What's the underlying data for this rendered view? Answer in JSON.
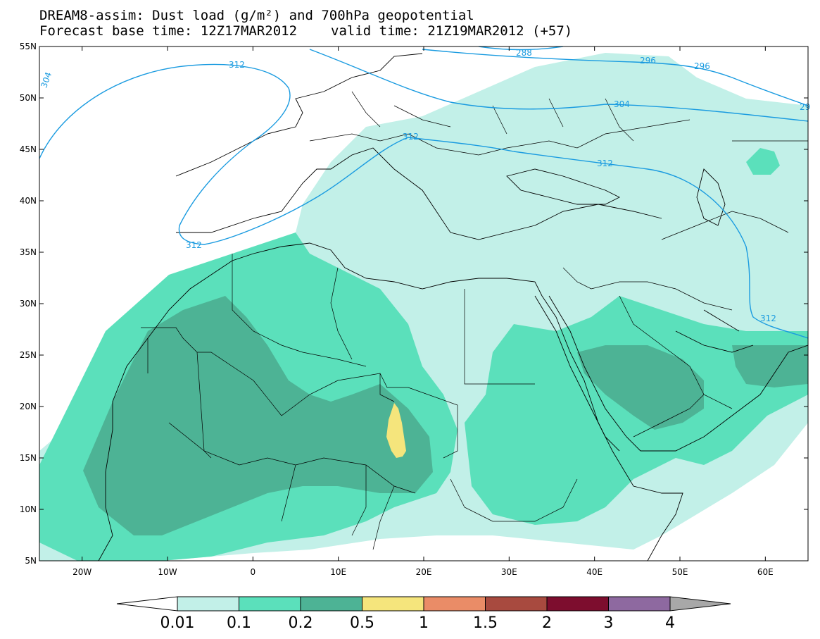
{
  "title": {
    "line1": "DREAM8-assim: Dust load (g/m²) and 700hPa geopotential",
    "base_time": "Forecast base time: 12Z17MAR2012",
    "valid_time": "valid time: 21Z19MAR2012 (+57)"
  },
  "axes": {
    "lat_labels": [
      "55N",
      "50N",
      "45N",
      "40N",
      "35N",
      "30N",
      "25N",
      "20N",
      "15N",
      "10N",
      "5N"
    ],
    "lon_labels": [
      "20W",
      "10W",
      "0",
      "10E",
      "20E",
      "30E",
      "40E",
      "50E",
      "60E"
    ]
  },
  "contour_labels": [
    "312",
    "288",
    "296",
    "296",
    "304",
    "312",
    "312",
    "312",
    "312",
    "304",
    "29"
  ],
  "colorbar": {
    "ticks": [
      "0.01",
      "0.1",
      "0.2",
      "0.5",
      "1",
      "1.5",
      "2",
      "3",
      "4"
    ],
    "colors": [
      "#c2f0e8",
      "#5be0bb",
      "#4db395",
      "#f5e57c",
      "#ea8c67",
      "#a84a3f",
      "#7d0d2e",
      "#8e69a0"
    ],
    "under_color": "#ffffff",
    "over_color": "#a8a8a8"
  },
  "colors": {
    "contour": "#1a9be0",
    "coast": "#000000"
  }
}
